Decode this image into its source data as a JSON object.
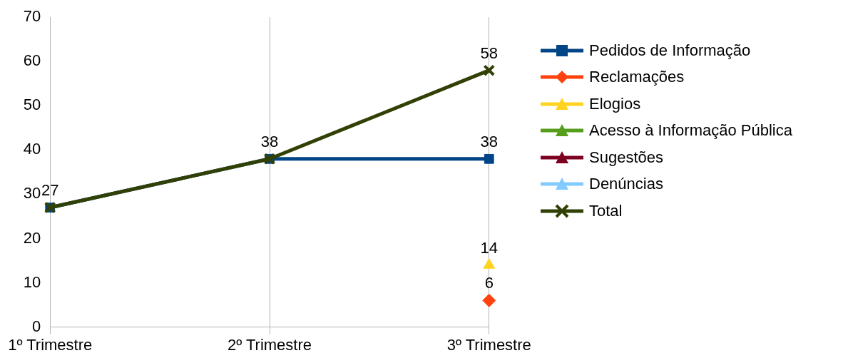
{
  "chart_data": {
    "type": "line",
    "categories": [
      "1º Trimestre",
      "2º Trimestre",
      "3º Trimestre"
    ],
    "series": [
      {
        "name": "Pedidos de Informação",
        "color": "#004586",
        "marker": "square",
        "values": [
          27,
          38,
          38
        ],
        "value_labels": [
          "27",
          "38",
          "38"
        ]
      },
      {
        "name": "Reclamações",
        "color": "#ff420e",
        "marker": "diamond",
        "values": [
          null,
          null,
          6
        ],
        "value_labels": [
          null,
          null,
          "6"
        ]
      },
      {
        "name": "Elogios",
        "color": "#ffd320",
        "marker": "triangle",
        "values": [
          null,
          null,
          14
        ],
        "value_labels": [
          null,
          null,
          "14"
        ]
      },
      {
        "name": "Acesso à Informação Pública",
        "color": "#579d1c",
        "marker": "triangle",
        "values": [
          null,
          null,
          null
        ]
      },
      {
        "name": "Sugestões",
        "color": "#7e0021",
        "marker": "triangle",
        "values": [
          null,
          null,
          null
        ]
      },
      {
        "name": "Denúncias",
        "color": "#83caff",
        "marker": "triangle",
        "values": [
          null,
          null,
          null
        ]
      },
      {
        "name": "Total",
        "color": "#314004",
        "marker": "cross",
        "values": [
          27,
          38,
          58
        ],
        "value_labels": [
          null,
          null,
          "58"
        ]
      }
    ],
    "ylim": [
      0,
      70
    ],
    "yticks": [
      0,
      10,
      20,
      30,
      40,
      50,
      60,
      70
    ],
    "grid": "x",
    "legend": "right",
    "line_style": "solid"
  }
}
